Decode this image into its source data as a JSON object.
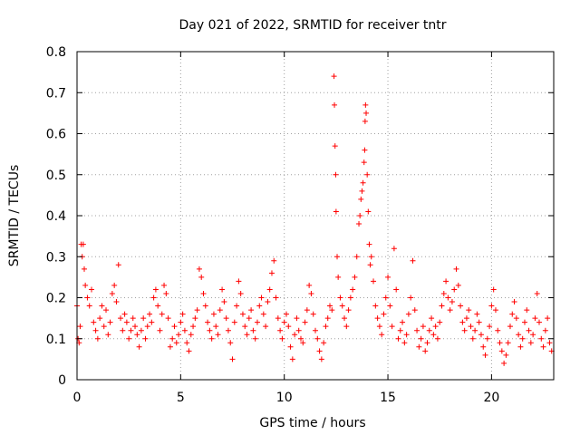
{
  "chart_data": {
    "type": "scatter",
    "title": "Day 021 of 2022, SRMTID for receiver tntr",
    "xlabel": "GPS time / hours",
    "ylabel": "SRMTID / TECUs",
    "xlim": [
      0,
      23
    ],
    "ylim": [
      0,
      0.8
    ],
    "grid": true,
    "marker": "+",
    "series_color": "#ff0000",
    "xticks": [
      0,
      5,
      10,
      15,
      20
    ],
    "xtick_labels": [
      "0",
      "5",
      "10",
      "15",
      "20"
    ],
    "yticks": [
      0,
      0.1,
      0.2,
      0.3,
      0.4,
      0.5,
      0.6,
      0.7,
      0.8
    ],
    "ytick_labels": [
      "0",
      "0.1",
      "0.2",
      "0.3",
      "0.4",
      "0.5",
      "0.6",
      "0.7",
      "0.8"
    ],
    "series": [
      {
        "name": "SRMTID",
        "points": [
          [
            0.0,
            0.18
          ],
          [
            0.05,
            0.1
          ],
          [
            0.1,
            0.09
          ],
          [
            0.15,
            0.13
          ],
          [
            0.2,
            0.33
          ],
          [
            0.25,
            0.3
          ],
          [
            0.3,
            0.33
          ],
          [
            0.35,
            0.27
          ],
          [
            0.4,
            0.23
          ],
          [
            0.5,
            0.2
          ],
          [
            0.6,
            0.18
          ],
          [
            0.7,
            0.22
          ],
          [
            0.8,
            0.14
          ],
          [
            0.9,
            0.12
          ],
          [
            1.0,
            0.1
          ],
          [
            1.1,
            0.15
          ],
          [
            1.2,
            0.18
          ],
          [
            1.3,
            0.13
          ],
          [
            1.4,
            0.17
          ],
          [
            1.5,
            0.11
          ],
          [
            1.6,
            0.14
          ],
          [
            1.7,
            0.21
          ],
          [
            1.8,
            0.23
          ],
          [
            1.9,
            0.19
          ],
          [
            2.0,
            0.28
          ],
          [
            2.1,
            0.15
          ],
          [
            2.2,
            0.12
          ],
          [
            2.3,
            0.16
          ],
          [
            2.4,
            0.14
          ],
          [
            2.5,
            0.1
          ],
          [
            2.6,
            0.12
          ],
          [
            2.7,
            0.15
          ],
          [
            2.8,
            0.13
          ],
          [
            2.9,
            0.11
          ],
          [
            3.0,
            0.08
          ],
          [
            3.1,
            0.12
          ],
          [
            3.2,
            0.15
          ],
          [
            3.3,
            0.1
          ],
          [
            3.4,
            0.13
          ],
          [
            3.5,
            0.16
          ],
          [
            3.6,
            0.14
          ],
          [
            3.7,
            0.2
          ],
          [
            3.8,
            0.22
          ],
          [
            3.9,
            0.18
          ],
          [
            4.0,
            0.12
          ],
          [
            4.1,
            0.16
          ],
          [
            4.2,
            0.23
          ],
          [
            4.3,
            0.21
          ],
          [
            4.4,
            0.15
          ],
          [
            4.5,
            0.08
          ],
          [
            4.6,
            0.1
          ],
          [
            4.7,
            0.13
          ],
          [
            4.8,
            0.09
          ],
          [
            4.9,
            0.11
          ],
          [
            5.0,
            0.14
          ],
          [
            5.1,
            0.16
          ],
          [
            5.2,
            0.12
          ],
          [
            5.3,
            0.09
          ],
          [
            5.4,
            0.07
          ],
          [
            5.5,
            0.11
          ],
          [
            5.6,
            0.13
          ],
          [
            5.7,
            0.15
          ],
          [
            5.8,
            0.17
          ],
          [
            5.9,
            0.27
          ],
          [
            6.0,
            0.25
          ],
          [
            6.1,
            0.21
          ],
          [
            6.2,
            0.18
          ],
          [
            6.3,
            0.14
          ],
          [
            6.4,
            0.12
          ],
          [
            6.5,
            0.1
          ],
          [
            6.6,
            0.16
          ],
          [
            6.7,
            0.13
          ],
          [
            6.8,
            0.11
          ],
          [
            6.9,
            0.17
          ],
          [
            7.0,
            0.22
          ],
          [
            7.1,
            0.19
          ],
          [
            7.2,
            0.15
          ],
          [
            7.3,
            0.12
          ],
          [
            7.4,
            0.09
          ],
          [
            7.5,
            0.05
          ],
          [
            7.6,
            0.14
          ],
          [
            7.7,
            0.18
          ],
          [
            7.8,
            0.24
          ],
          [
            7.9,
            0.21
          ],
          [
            8.0,
            0.16
          ],
          [
            8.1,
            0.13
          ],
          [
            8.2,
            0.11
          ],
          [
            8.3,
            0.15
          ],
          [
            8.4,
            0.17
          ],
          [
            8.5,
            0.12
          ],
          [
            8.6,
            0.1
          ],
          [
            8.7,
            0.14
          ],
          [
            8.8,
            0.18
          ],
          [
            8.9,
            0.2
          ],
          [
            9.0,
            0.16
          ],
          [
            9.1,
            0.13
          ],
          [
            9.2,
            0.19
          ],
          [
            9.3,
            0.22
          ],
          [
            9.4,
            0.26
          ],
          [
            9.5,
            0.29
          ],
          [
            9.6,
            0.2
          ],
          [
            9.7,
            0.15
          ],
          [
            9.8,
            0.12
          ],
          [
            9.9,
            0.1
          ],
          [
            10.0,
            0.14
          ],
          [
            10.1,
            0.16
          ],
          [
            10.2,
            0.13
          ],
          [
            10.3,
            0.08
          ],
          [
            10.4,
            0.05
          ],
          [
            10.5,
            0.11
          ],
          [
            10.6,
            0.15
          ],
          [
            10.7,
            0.12
          ],
          [
            10.8,
            0.1
          ],
          [
            10.9,
            0.09
          ],
          [
            11.0,
            0.14
          ],
          [
            11.1,
            0.17
          ],
          [
            11.2,
            0.23
          ],
          [
            11.3,
            0.21
          ],
          [
            11.4,
            0.16
          ],
          [
            11.5,
            0.12
          ],
          [
            11.6,
            0.1
          ],
          [
            11.7,
            0.07
          ],
          [
            11.8,
            0.05
          ],
          [
            11.9,
            0.09
          ],
          [
            12.0,
            0.13
          ],
          [
            12.1,
            0.15
          ],
          [
            12.2,
            0.18
          ],
          [
            12.3,
            0.17
          ],
          [
            12.4,
            0.74
          ],
          [
            12.42,
            0.67
          ],
          [
            12.45,
            0.57
          ],
          [
            12.48,
            0.5
          ],
          [
            12.5,
            0.41
          ],
          [
            12.55,
            0.3
          ],
          [
            12.6,
            0.25
          ],
          [
            12.7,
            0.2
          ],
          [
            12.8,
            0.18
          ],
          [
            12.9,
            0.15
          ],
          [
            13.0,
            0.13
          ],
          [
            13.1,
            0.17
          ],
          [
            13.2,
            0.2
          ],
          [
            13.3,
            0.22
          ],
          [
            13.4,
            0.25
          ],
          [
            13.5,
            0.3
          ],
          [
            13.6,
            0.38
          ],
          [
            13.65,
            0.4
          ],
          [
            13.7,
            0.44
          ],
          [
            13.75,
            0.46
          ],
          [
            13.8,
            0.48
          ],
          [
            13.85,
            0.53
          ],
          [
            13.88,
            0.56
          ],
          [
            13.9,
            0.63
          ],
          [
            13.92,
            0.67
          ],
          [
            13.95,
            0.65
          ],
          [
            14.0,
            0.5
          ],
          [
            14.05,
            0.41
          ],
          [
            14.1,
            0.33
          ],
          [
            14.15,
            0.28
          ],
          [
            14.2,
            0.3
          ],
          [
            14.3,
            0.24
          ],
          [
            14.4,
            0.18
          ],
          [
            14.5,
            0.15
          ],
          [
            14.6,
            0.13
          ],
          [
            14.7,
            0.11
          ],
          [
            14.8,
            0.16
          ],
          [
            14.9,
            0.2
          ],
          [
            15.0,
            0.25
          ],
          [
            15.1,
            0.18
          ],
          [
            15.2,
            0.13
          ],
          [
            15.3,
            0.32
          ],
          [
            15.4,
            0.22
          ],
          [
            15.5,
            0.1
          ],
          [
            15.6,
            0.12
          ],
          [
            15.7,
            0.14
          ],
          [
            15.8,
            0.09
          ],
          [
            15.9,
            0.11
          ],
          [
            16.0,
            0.16
          ],
          [
            16.1,
            0.2
          ],
          [
            16.2,
            0.29
          ],
          [
            16.3,
            0.17
          ],
          [
            16.4,
            0.12
          ],
          [
            16.5,
            0.08
          ],
          [
            16.6,
            0.1
          ],
          [
            16.7,
            0.13
          ],
          [
            16.8,
            0.07
          ],
          [
            16.9,
            0.09
          ],
          [
            17.0,
            0.12
          ],
          [
            17.1,
            0.15
          ],
          [
            17.2,
            0.11
          ],
          [
            17.3,
            0.13
          ],
          [
            17.4,
            0.1
          ],
          [
            17.5,
            0.14
          ],
          [
            17.6,
            0.18
          ],
          [
            17.7,
            0.21
          ],
          [
            17.8,
            0.24
          ],
          [
            17.9,
            0.2
          ],
          [
            18.0,
            0.17
          ],
          [
            18.1,
            0.19
          ],
          [
            18.2,
            0.22
          ],
          [
            18.3,
            0.27
          ],
          [
            18.4,
            0.23
          ],
          [
            18.5,
            0.18
          ],
          [
            18.6,
            0.14
          ],
          [
            18.7,
            0.12
          ],
          [
            18.8,
            0.15
          ],
          [
            18.9,
            0.17
          ],
          [
            19.0,
            0.13
          ],
          [
            19.1,
            0.1
          ],
          [
            19.2,
            0.12
          ],
          [
            19.3,
            0.16
          ],
          [
            19.4,
            0.14
          ],
          [
            19.5,
            0.11
          ],
          [
            19.6,
            0.08
          ],
          [
            19.7,
            0.06
          ],
          [
            19.8,
            0.1
          ],
          [
            19.9,
            0.13
          ],
          [
            20.0,
            0.18
          ],
          [
            20.1,
            0.22
          ],
          [
            20.2,
            0.17
          ],
          [
            20.3,
            0.12
          ],
          [
            20.4,
            0.09
          ],
          [
            20.5,
            0.07
          ],
          [
            20.6,
            0.04
          ],
          [
            20.7,
            0.06
          ],
          [
            20.8,
            0.09
          ],
          [
            20.9,
            0.13
          ],
          [
            21.0,
            0.16
          ],
          [
            21.1,
            0.19
          ],
          [
            21.2,
            0.15
          ],
          [
            21.3,
            0.11
          ],
          [
            21.4,
            0.08
          ],
          [
            21.5,
            0.1
          ],
          [
            21.6,
            0.14
          ],
          [
            21.7,
            0.17
          ],
          [
            21.8,
            0.12
          ],
          [
            21.9,
            0.09
          ],
          [
            22.0,
            0.11
          ],
          [
            22.1,
            0.15
          ],
          [
            22.2,
            0.21
          ],
          [
            22.3,
            0.14
          ],
          [
            22.4,
            0.1
          ],
          [
            22.5,
            0.08
          ],
          [
            22.6,
            0.12
          ],
          [
            22.7,
            0.15
          ],
          [
            22.8,
            0.09
          ],
          [
            22.9,
            0.07
          ]
        ]
      }
    ]
  }
}
